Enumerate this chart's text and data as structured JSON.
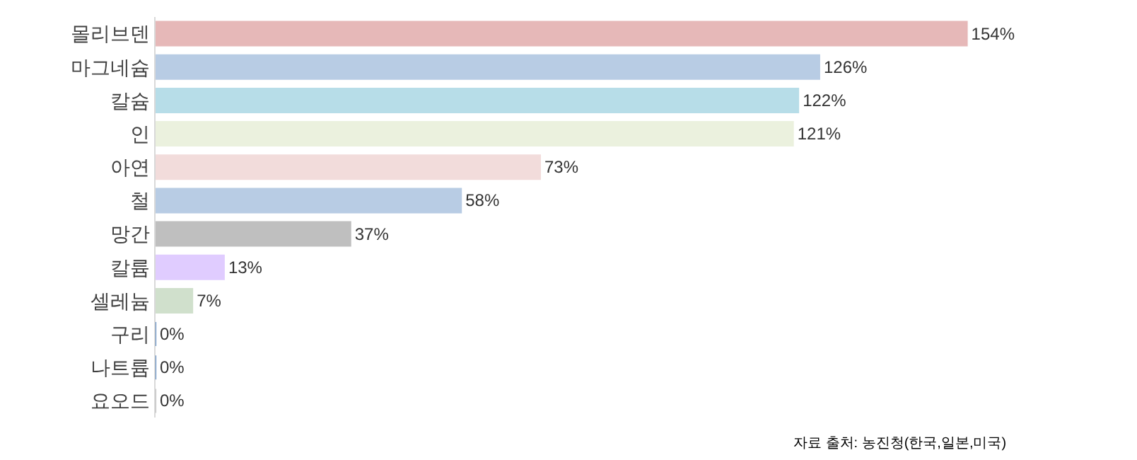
{
  "chart_data": {
    "type": "bar",
    "orientation": "horizontal",
    "categories": [
      "몰리브덴",
      "마그네슘",
      "칼슘",
      "인",
      "아연",
      "철",
      "망간",
      "칼륨",
      "셀레늄",
      "구리",
      "나트륨",
      "요오드"
    ],
    "values": [
      154,
      126,
      122,
      121,
      73,
      58,
      37,
      13,
      7,
      0,
      0,
      0
    ],
    "colors": [
      "#e6b8b8",
      "#b8cce4",
      "#b7dde8",
      "#ebf1de",
      "#f2dcdb",
      "#b8cce4",
      "#bfbfbf",
      "#e0ccff",
      "#d0e0cc",
      "#4f81bd",
      "#4f81bd",
      "#bfbfbf"
    ],
    "value_labels": [
      "154%",
      "126%",
      "122%",
      "121%",
      "73%",
      "58%",
      "37%",
      "13%",
      "7%",
      "0%",
      "0%",
      "0%"
    ],
    "tick_labels": "y",
    "legend": false,
    "annotations": [
      "자료 출처: 농진청(한국,일본,미국)"
    ]
  }
}
